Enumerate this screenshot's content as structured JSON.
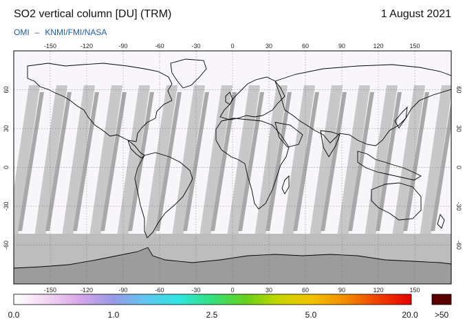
{
  "header": {
    "title": "SO2 vertical column [DU] (TRM)",
    "date": "1 August 2021"
  },
  "credit": {
    "instrument": "OMI",
    "separator": "–",
    "agencies": "KNMI/FMI/NASA"
  },
  "map": {
    "projection": "equirectangular",
    "longitude_ticks": [
      "-150",
      "-120",
      "-90",
      "-60",
      "-30",
      "0",
      "30",
      "60",
      "90",
      "120",
      "150"
    ],
    "latitude_ticks": [
      "60",
      "30",
      "0",
      "-30",
      "-60"
    ],
    "colors": {
      "background": "#f8f6fa",
      "missing_swath_gap": "#c8c8c8",
      "swath_band": "#a9a9a9",
      "polar_night": "#bdbdbd",
      "antarctica": "#9c9c9c",
      "coastline": "#000000",
      "grid": "#666666"
    }
  },
  "colorbar": {
    "labels": [
      "0.0",
      "1.0",
      "2.5",
      "5.0",
      "20.0"
    ],
    "overflow_label": ">50",
    "overflow_color": "#5a0000",
    "gradient_colors": [
      "#ffffff",
      "#f3d6f3",
      "#d7a6e8",
      "#9999e6",
      "#5ec8f0",
      "#2ee6e0",
      "#33e07a",
      "#66d11a",
      "#c7d600",
      "#f2c200",
      "#f28c00",
      "#f04000",
      "#e60000"
    ]
  }
}
